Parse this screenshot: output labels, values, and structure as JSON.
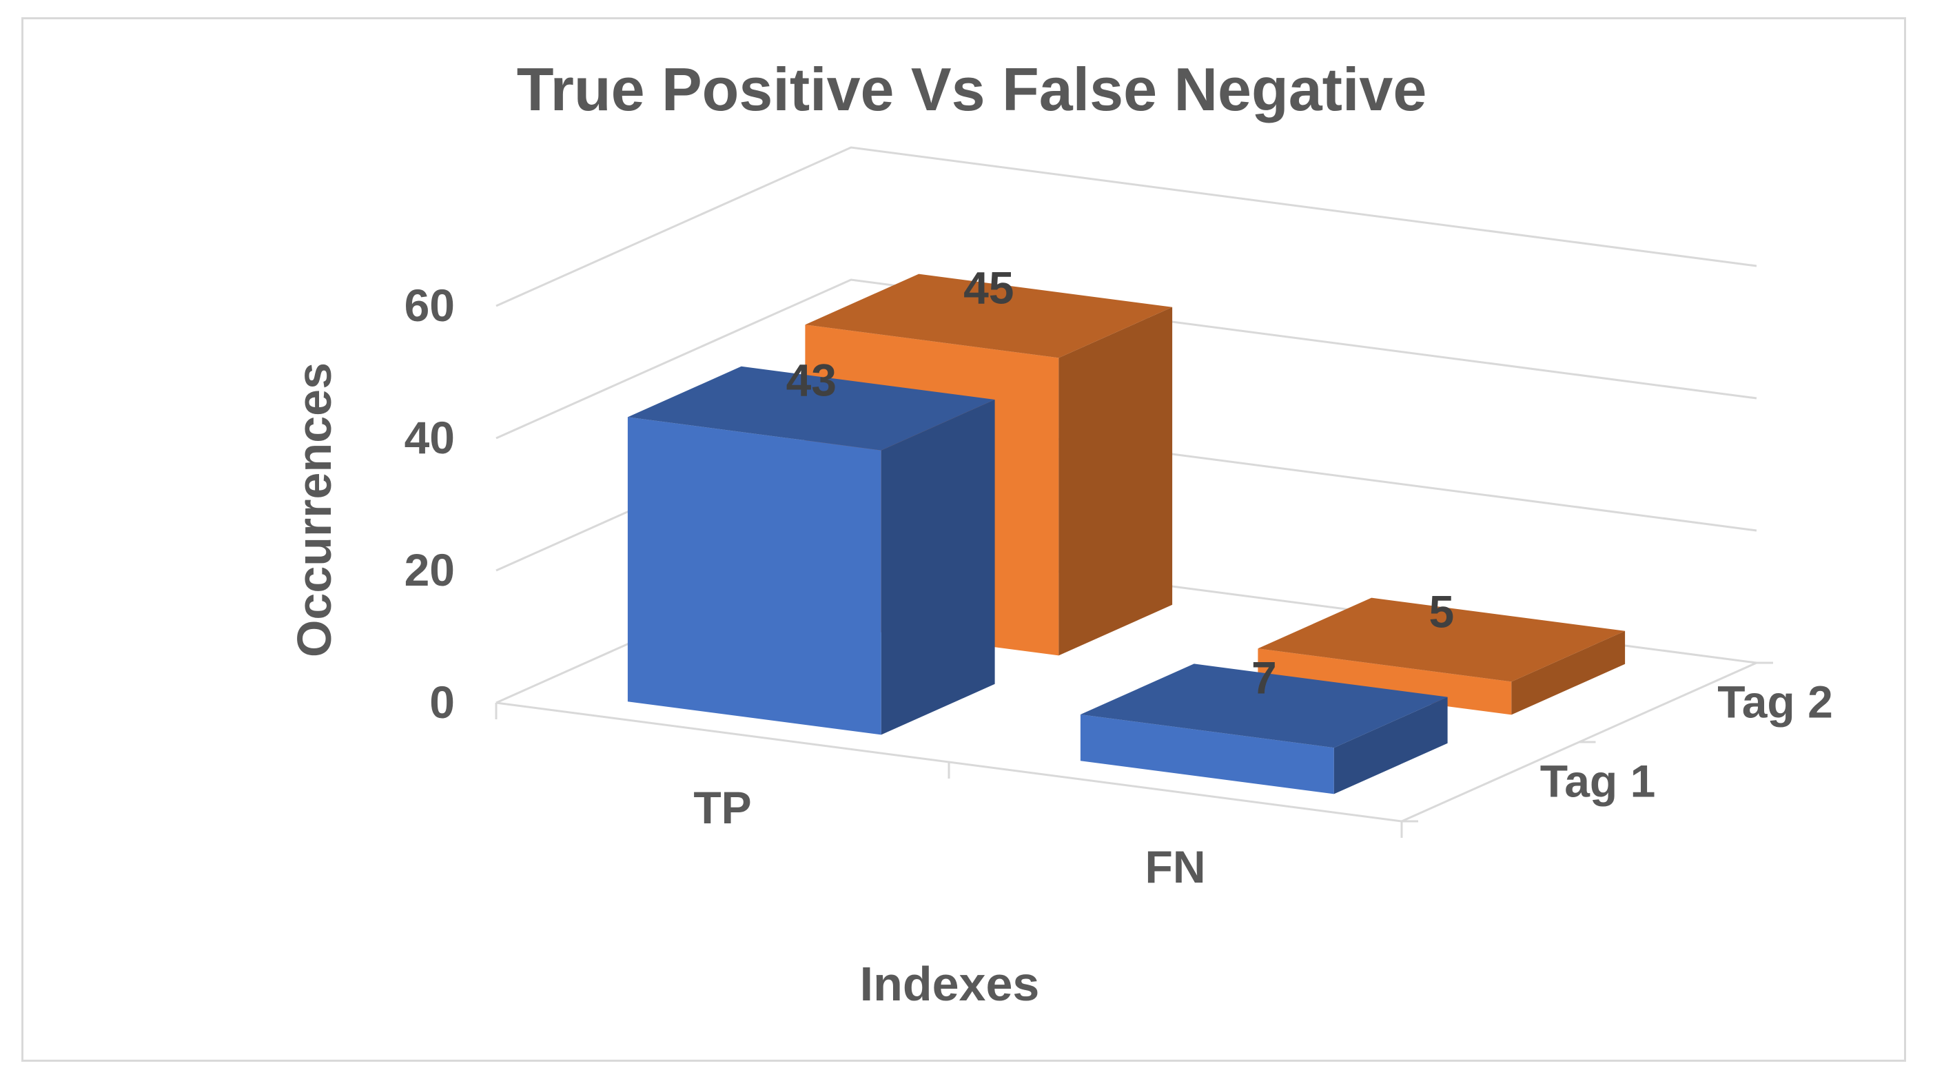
{
  "chart_data": {
    "type": "bar",
    "subtype": "3d-column",
    "title": "True Positive Vs False Negative",
    "xlabel": "Indexes",
    "ylabel": "Occurrences",
    "categories": [
      "TP",
      "FN"
    ],
    "depth_labels": [
      "Tag 1",
      "Tag 2"
    ],
    "series": [
      {
        "name": "Tag 1",
        "values": [
          43,
          7
        ],
        "color": "#4472C4"
      },
      {
        "name": "Tag 2",
        "values": [
          45,
          5
        ],
        "color": "#ED7D31"
      }
    ],
    "y_ticks": [
      0,
      20,
      40,
      60
    ],
    "ylim": [
      0,
      60
    ],
    "grid": true,
    "legend": "none",
    "data_labels": true
  }
}
